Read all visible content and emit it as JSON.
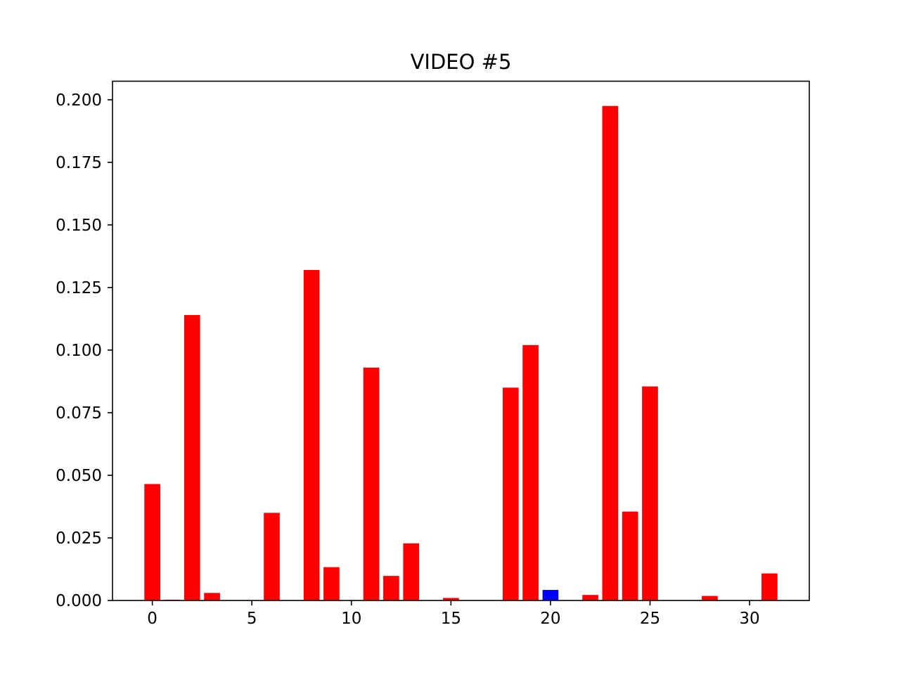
{
  "chart_data": {
    "type": "bar",
    "title": "VIDEO #5",
    "xlabel": "",
    "ylabel": "",
    "x": [
      0,
      1,
      2,
      3,
      4,
      5,
      6,
      7,
      8,
      9,
      10,
      11,
      12,
      13,
      14,
      15,
      16,
      17,
      18,
      19,
      20,
      21,
      22,
      23,
      24,
      25,
      26,
      27,
      28,
      29,
      30,
      31
    ],
    "values": [
      0.0465,
      0.0003,
      0.114,
      0.003,
      0,
      0,
      0.035,
      0,
      0.132,
      0.0133,
      0,
      0.093,
      0.0098,
      0.0228,
      0,
      0.001,
      0,
      0,
      0.085,
      0.102,
      0.0042,
      0,
      0.0022,
      0.1975,
      0.0355,
      0.0855,
      0,
      0,
      0.0018,
      0,
      0,
      0.0108
    ],
    "colors": [
      "#ff0000",
      "#ff0000",
      "#ff0000",
      "#ff0000",
      "#ff0000",
      "#ff0000",
      "#ff0000",
      "#ff0000",
      "#ff0000",
      "#ff0000",
      "#ff0000",
      "#ff0000",
      "#ff0000",
      "#ff0000",
      "#ff0000",
      "#ff0000",
      "#ff0000",
      "#ff0000",
      "#ff0000",
      "#ff0000",
      "#0000ff",
      "#ff0000",
      "#ff0000",
      "#ff0000",
      "#ff0000",
      "#ff0000",
      "#ff0000",
      "#ff0000",
      "#ff0000",
      "#ff0000",
      "#ff0000",
      "#ff0000"
    ],
    "xlim": [
      -2,
      33
    ],
    "ylim": [
      0,
      0.2074
    ],
    "x_ticks": [
      0,
      5,
      10,
      15,
      20,
      25,
      30
    ],
    "x_tick_labels": [
      "0",
      "5",
      "10",
      "15",
      "20",
      "25",
      "30"
    ],
    "y_ticks": [
      0,
      0.025,
      0.05,
      0.075,
      0.1,
      0.125,
      0.15,
      0.175,
      0.2
    ],
    "y_tick_labels": [
      "0.000",
      "0.025",
      "0.050",
      "0.075",
      "0.100",
      "0.125",
      "0.150",
      "0.175",
      "0.200"
    ],
    "grid": false,
    "legend": "none"
  }
}
